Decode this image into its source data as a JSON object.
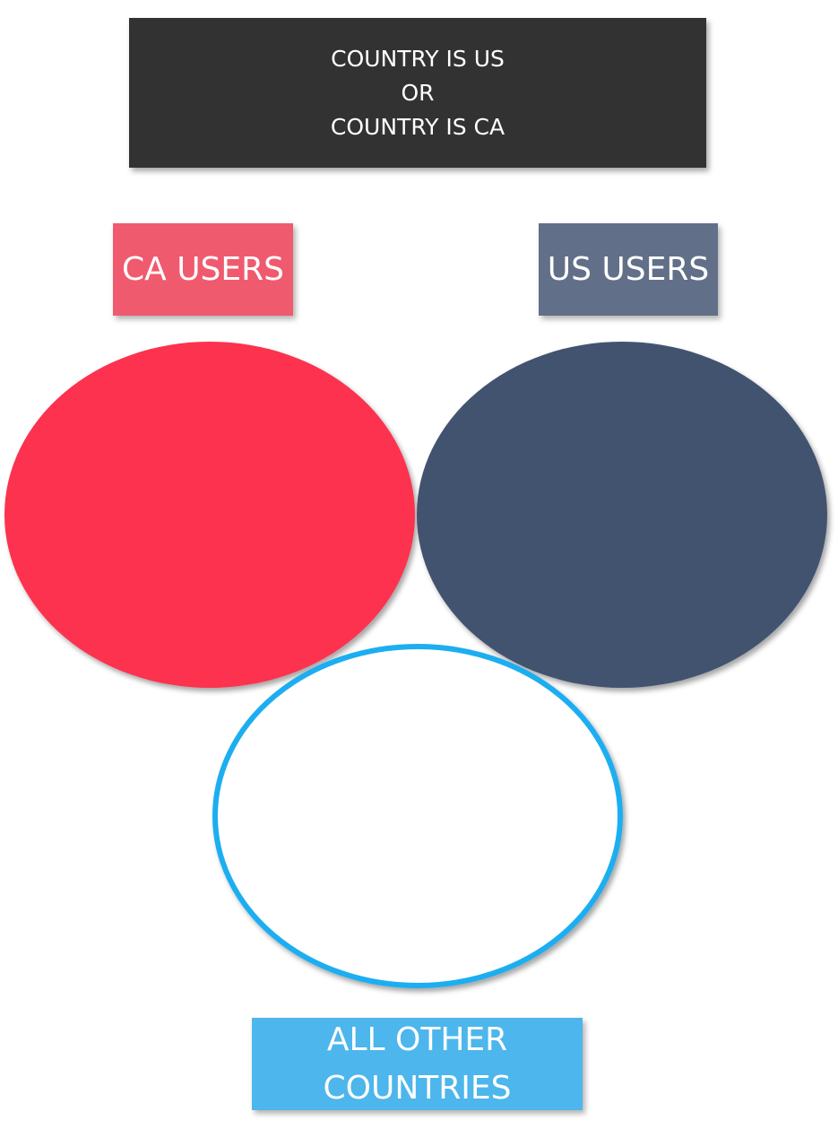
{
  "condition": {
    "line1": "COUNTRY IS US",
    "line2": "OR",
    "line3": "COUNTRY IS CA"
  },
  "labels": {
    "ca_users": "CA USERS",
    "us_users": "US USERS",
    "other_line1": "ALL OTHER",
    "other_line2": "COUNTRIES"
  },
  "colors": {
    "condition_bg": "#323232",
    "ca_circle": "#fc314f",
    "ca_label": "#f05a6e",
    "us_circle": "#42526f",
    "us_label": "#626f88",
    "other_ring": "#1eaef0",
    "other_label": "#4db6ec"
  }
}
